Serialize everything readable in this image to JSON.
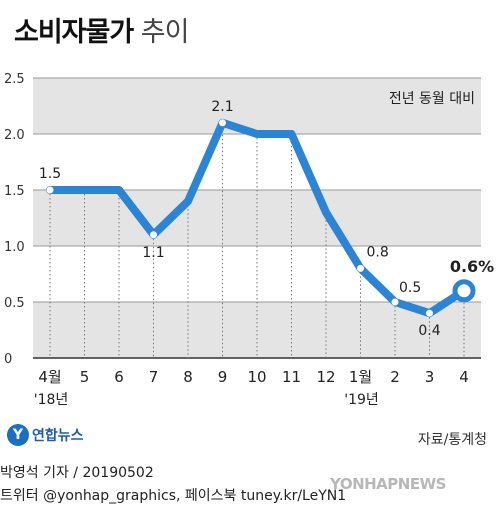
{
  "title": {
    "bold": "소비자물가",
    "light": "추이"
  },
  "chart_data": {
    "type": "line",
    "subtitle": "전년 동월 대비",
    "x": [
      "4월",
      "5",
      "6",
      "7",
      "8",
      "9",
      "10",
      "11",
      "12",
      "1월",
      "2",
      "3",
      "4"
    ],
    "year_labels": [
      "'18년",
      "'19년"
    ],
    "series": [
      {
        "values": [
          1.5,
          1.5,
          1.5,
          1.1,
          1.4,
          2.1,
          2.0,
          2.0,
          1.3,
          0.8,
          0.5,
          0.4,
          0.6
        ]
      }
    ],
    "data_labels": [
      {
        "index": 0,
        "text": "1.5"
      },
      {
        "index": 3,
        "text": "1.1"
      },
      {
        "index": 5,
        "text": "2.1"
      },
      {
        "index": 9,
        "text": "0.8"
      },
      {
        "index": 10,
        "text": "0.5"
      },
      {
        "index": 11,
        "text": "0.4"
      },
      {
        "index": 12,
        "text": "0.6%"
      }
    ],
    "ylim": [
      0,
      2.5
    ],
    "y_ticks": [
      "0",
      "0.5",
      "1.0",
      "1.5",
      "2.0",
      "2.5"
    ],
    "line_color": "#2c84d4",
    "band_color": "#e4e4e4",
    "grid": true
  },
  "source": "자료/통계청",
  "logo": {
    "mark": "Y",
    "name": "연합뉴스"
  },
  "credit": {
    "line1": "박영석 기자 /  20190502",
    "line2": "트위터 @yonhap_graphics, 페이스북 tuney.kr/LeYN1"
  },
  "watermark": "YONHAPNEWS"
}
